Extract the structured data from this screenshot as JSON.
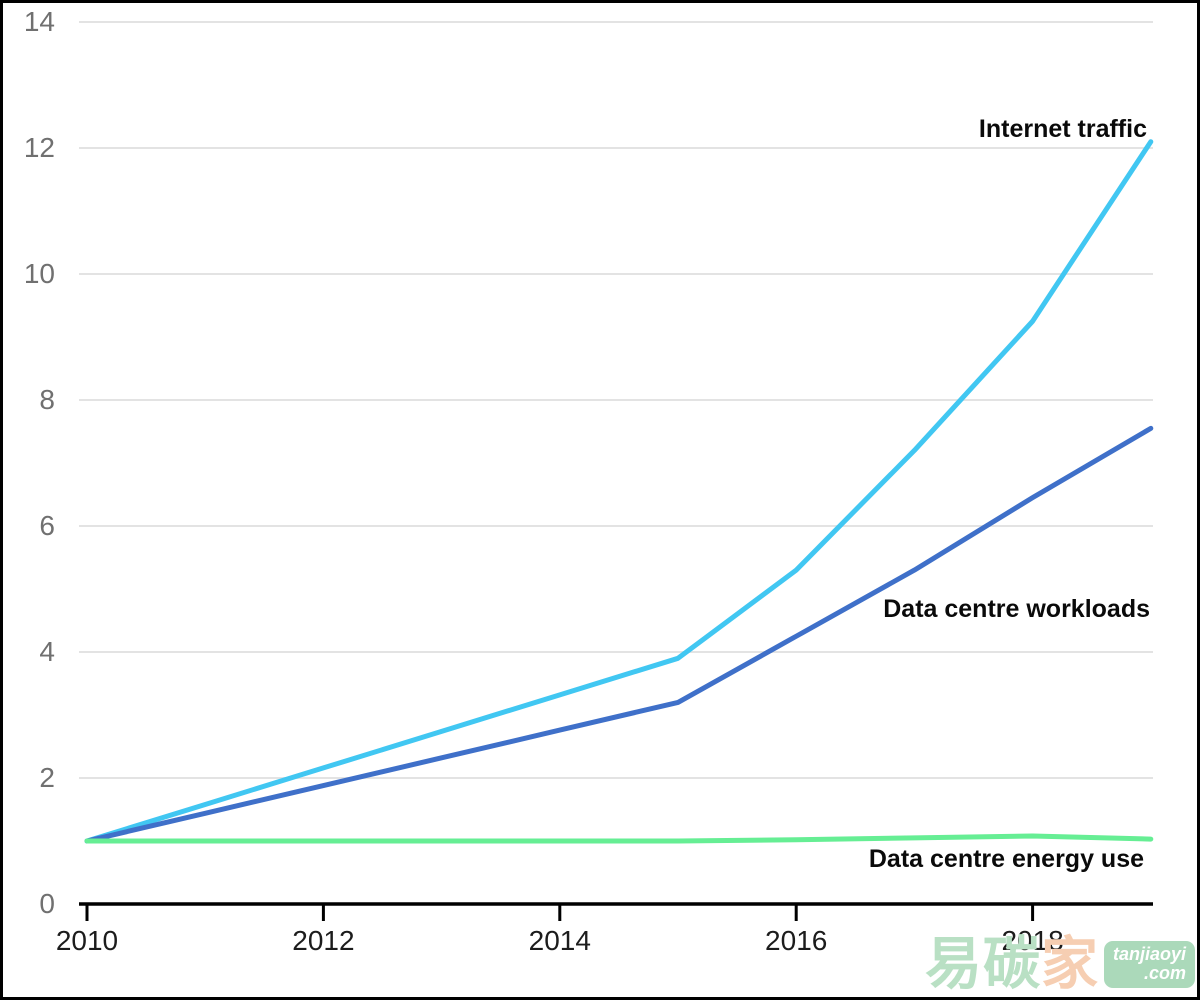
{
  "chart_data": {
    "type": "line",
    "title": "",
    "xlabel": "",
    "ylabel": "",
    "x": [
      2010,
      2011,
      2012,
      2013,
      2014,
      2015,
      2016,
      2017,
      2018,
      2019
    ],
    "xticks": [
      2010,
      2012,
      2014,
      2016,
      2018
    ],
    "yticks": [
      0,
      2,
      4,
      6,
      8,
      10,
      12,
      14
    ],
    "ylim": [
      0,
      14
    ],
    "xlim": [
      2010,
      2019
    ],
    "grid": "horizontal-only",
    "legend_position": "direct line labels (right side)",
    "series": [
      {
        "name": "Internet traffic",
        "color": "#41C7F2",
        "values": [
          1.0,
          1.58,
          2.16,
          2.74,
          3.32,
          3.9,
          5.3,
          7.2,
          9.25,
          12.1
        ]
      },
      {
        "name": "Data centre workloads",
        "color": "#3F70C9",
        "values": [
          1.0,
          1.44,
          1.88,
          2.32,
          2.76,
          3.2,
          4.25,
          5.3,
          6.45,
          7.55
        ]
      },
      {
        "name": "Data centre energy use",
        "color": "#66EE94",
        "values": [
          1.0,
          1.0,
          1.0,
          1.0,
          1.0,
          1.0,
          1.02,
          1.05,
          1.08,
          1.03
        ]
      }
    ]
  },
  "labels": {
    "internet_traffic": "Internet traffic",
    "workloads": "Data centre workloads",
    "energy": "Data centre energy use"
  },
  "colors": {
    "grid": "#e3e3e3",
    "axis": "#000000",
    "y_tick_label": "#707070",
    "x_tick_label": "#1c1c1c",
    "internet_traffic": "#41C7F2",
    "workloads": "#3F70C9",
    "energy": "#66EE94"
  },
  "watermark": {
    "chars_green": "易碳",
    "chars_salmon": "家",
    "badge_line1": "tanjiaoyi",
    "badge_line2": ".com"
  }
}
